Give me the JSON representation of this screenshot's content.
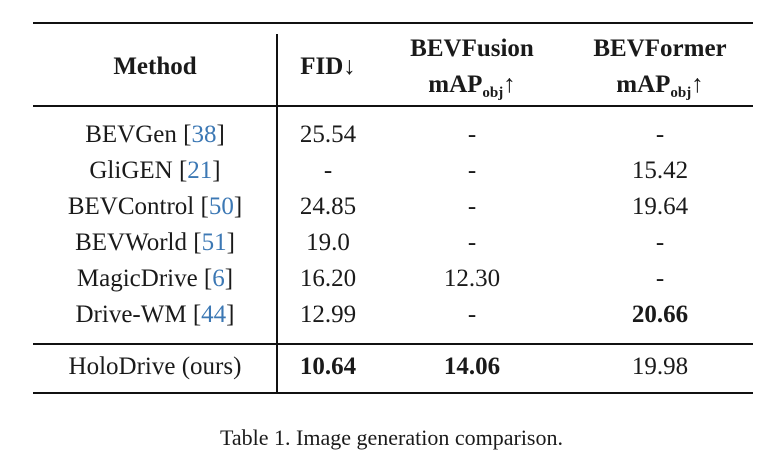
{
  "header": {
    "method": "Method",
    "fid": "FID↓",
    "bevfusion_line1": "BEVFusion",
    "bevfusion_map": "mAP",
    "bevfusion_sub": "obj",
    "bevfusion_arrow": "↑",
    "bevformer_line1": "BEVFormer",
    "bevformer_map": "mAP",
    "bevformer_sub": "obj",
    "bevformer_arrow": "↑"
  },
  "rows": [
    {
      "method": "BEVGen [",
      "ref": "38",
      "close": "]",
      "fid": "25.54",
      "bevfusion": "-",
      "bevformer": "-"
    },
    {
      "method": "GliGEN [",
      "ref": "21",
      "close": "]",
      "fid": "-",
      "bevfusion": "-",
      "bevformer": "15.42"
    },
    {
      "method": "BEVControl [",
      "ref": "50",
      "close": "]",
      "fid": "24.85",
      "bevfusion": "-",
      "bevformer": "19.64"
    },
    {
      "method": "BEVWorld [",
      "ref": "51",
      "close": "]",
      "fid": "19.0",
      "bevfusion": "-",
      "bevformer": "-"
    },
    {
      "method": "MagicDrive [",
      "ref": "6",
      "close": "]",
      "fid": "16.20",
      "bevfusion": "12.30",
      "bevformer": "-"
    },
    {
      "method": "Drive-WM [",
      "ref": "44",
      "close": "]",
      "fid": "12.99",
      "bevfusion": "-",
      "bevformer": "20.66"
    }
  ],
  "ours": {
    "method": "HoloDrive (ours)",
    "fid": "10.64",
    "bevfusion": "14.06",
    "bevformer": "19.98"
  },
  "caption": "Table 1. Image generation comparison."
}
